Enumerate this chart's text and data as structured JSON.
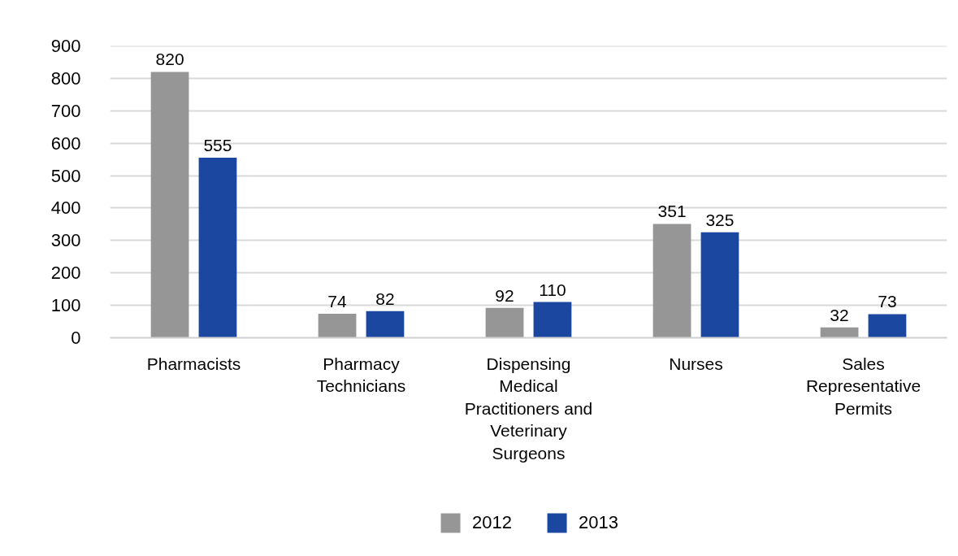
{
  "chart_data": {
    "type": "bar",
    "categories": [
      "Pharmacists",
      "Pharmacy Technicians",
      "Dispensing Medical Practitioners and Veterinary Surgeons",
      "Nurses",
      "Sales Representative Permits"
    ],
    "series": [
      {
        "name": "2012",
        "color": "#969696",
        "values": [
          820,
          74,
          92,
          351,
          32
        ]
      },
      {
        "name": "2013",
        "color": "#1b47a0",
        "values": [
          555,
          82,
          110,
          325,
          73
        ]
      }
    ],
    "ylim": [
      0,
      900
    ],
    "yticks": [
      0,
      100,
      200,
      300,
      400,
      500,
      600,
      700,
      800,
      900
    ],
    "grid": "y",
    "legend": "bottom",
    "data_labels": true
  }
}
